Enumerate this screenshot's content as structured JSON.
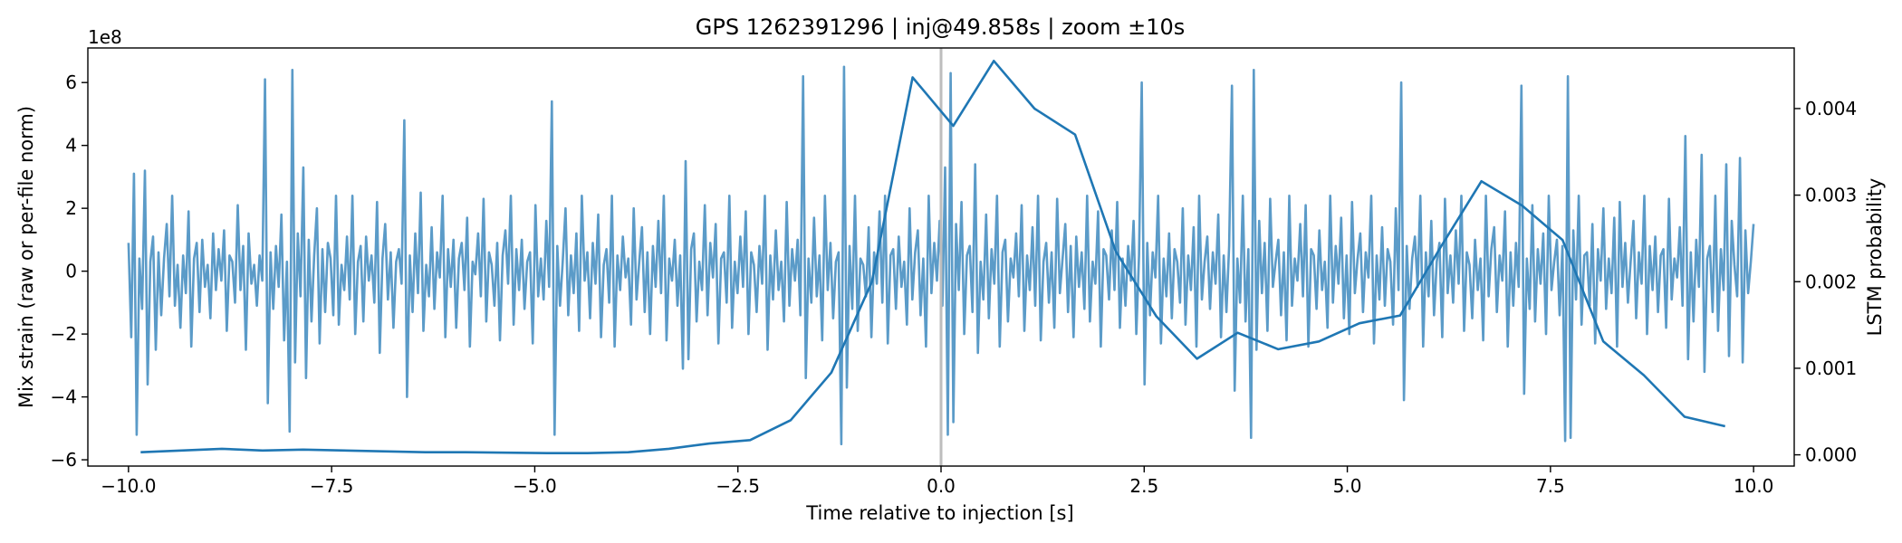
{
  "chart_data": {
    "type": "line",
    "title": "GPS 1262391296 | inj@49.858s | zoom ±10s",
    "xlabel": "Time relative to injection [s]",
    "ylabel_left": "Mix strain (raw or per-file norm)",
    "ylabel_right": "LSTM probability",
    "left_axis_offset_label": "1e8",
    "xlim": [
      -10.5,
      10.5
    ],
    "ylim_left": [
      -6.2,
      7.1
    ],
    "ylim_right": [
      -0.00013,
      0.0047
    ],
    "x_ticks": [
      -10.0,
      -7.5,
      -5.0,
      -2.5,
      0.0,
      2.5,
      5.0,
      7.5,
      10.0
    ],
    "x_tick_labels": [
      "−10.0",
      "−7.5",
      "−5.0",
      "−2.5",
      "0.0",
      "2.5",
      "5.0",
      "7.5",
      "10.0"
    ],
    "y_left_ticks": [
      -6,
      -4,
      -2,
      0,
      2,
      4,
      6
    ],
    "y_left_tick_labels": [
      "−6",
      "−4",
      "−2",
      "0",
      "2",
      "4",
      "6"
    ],
    "y_right_ticks": [
      0.0,
      0.001,
      0.002,
      0.003,
      0.004
    ],
    "y_right_tick_labels": [
      "0.000",
      "0.001",
      "0.002",
      "0.003",
      "0.004"
    ],
    "vertical_marker_x": 0.0,
    "grid": false,
    "series": [
      {
        "axis": "left",
        "color": "#5b9bc8",
        "x_range": [
          -10.0,
          10.0
        ],
        "n_points": 560,
        "values": [
          0.9,
          -2.1,
          3.1,
          -5.2,
          0.4,
          -1.2,
          3.2,
          -3.6,
          0.3,
          1.1,
          -2.5,
          0.6,
          -1.4,
          0.4,
          1.5,
          -0.8,
          2.4,
          -1.1,
          0.2,
          -1.8,
          0.5,
          -0.7,
          1.9,
          -2.4,
          0.4,
          0.9,
          -1.3,
          1.0,
          -0.5,
          0.2,
          -1.5,
          1.2,
          -0.6,
          0.7,
          -0.3,
          1.3,
          -1.9,
          0.5,
          0.3,
          -1.0,
          2.1,
          -0.6,
          0.8,
          -2.5,
          1.2,
          -0.4,
          0.2,
          -1.1,
          0.5,
          -0.3,
          6.1,
          -4.2,
          0.6,
          -1.2,
          0.8,
          -0.5,
          1.8,
          -2.2,
          0.3,
          -5.1,
          6.4,
          -2.9,
          1.2,
          -0.8,
          3.3,
          -3.4,
          1.0,
          -1.6,
          0.5,
          2.0,
          -2.3,
          0.7,
          -1.3,
          0.9,
          0.4,
          -1.4,
          2.4,
          -1.7,
          0.2,
          -0.6,
          1.1,
          -0.9,
          2.4,
          -2.0,
          0.3,
          0.8,
          -1.6,
          1.1,
          -0.3,
          0.5,
          -1.0,
          2.2,
          -2.6,
          0.4,
          1.5,
          -0.9,
          0.6,
          -1.8,
          0.3,
          0.7,
          -0.4,
          4.8,
          -4.0,
          0.5,
          -1.3,
          1.2,
          -0.7,
          2.5,
          -1.9,
          0.2,
          -0.8,
          1.4,
          -1.2,
          0.6,
          -0.2,
          2.4,
          -2.1,
          0.7,
          -0.5,
          1.0,
          -1.8,
          0.4,
          0.9,
          -0.6,
          1.7,
          -2.4,
          0.3,
          -0.1,
          1.2,
          -0.8,
          2.3,
          -1.6,
          0.6,
          0.2,
          -1.1,
          0.9,
          -2.2,
          0.5,
          1.3,
          -0.4,
          2.4,
          -1.7,
          0.7,
          -0.6,
          1.0,
          -1.2,
          0.3,
          0.6,
          -2.3,
          2.1,
          -0.8,
          0.4,
          -0.9,
          1.6,
          -0.5,
          5.4,
          -5.2,
          0.8,
          -1.1,
          0.3,
          2.0,
          -1.4,
          0.5,
          -0.7,
          1.2,
          -1.9,
          2.4,
          -0.3,
          0.6,
          -1.5,
          0.9,
          -0.4,
          1.8,
          -2.1,
          0.2,
          0.7,
          -1.0,
          2.4,
          -2.4,
          0.5,
          -0.6,
          1.1,
          -0.2,
          0.4,
          -1.7,
          2.0,
          -0.9,
          0.3,
          1.4,
          -1.3,
          0.6,
          -2.0,
          0.8,
          -0.5,
          1.6,
          -0.7,
          2.4,
          -2.2,
          0.4,
          -0.3,
          1.0,
          -1.1,
          0.5,
          -3.1,
          3.5,
          -2.8,
          0.7,
          1.2,
          -1.6,
          0.3,
          -0.6,
          2.1,
          -1.4,
          0.9,
          -0.2,
          1.5,
          -2.3,
          0.4,
          0.6,
          -1.0,
          2.4,
          -1.8,
          0.3,
          -0.7,
          1.1,
          -0.5,
          1.9,
          -2.0,
          0.6,
          0.2,
          -1.3,
          0.8,
          -0.4,
          2.4,
          -2.5,
          0.5,
          -0.9,
          1.3,
          -0.6,
          0.3,
          -1.6,
          2.2,
          -1.1,
          0.7,
          -0.3,
          1.0,
          -1.4,
          6.2,
          -3.4,
          0.4,
          -1.0,
          1.7,
          -0.8,
          0.5,
          -2.2,
          2.4,
          -0.6,
          0.9,
          -1.5,
          0.3,
          0.6,
          -5.5,
          6.5,
          -3.7,
          0.8,
          -1.2,
          2.4,
          -1.9,
          0.4,
          0.2,
          -0.8,
          1.4,
          -2.1,
          0.6,
          -0.4,
          1.9,
          -1.0,
          2.4,
          -2.3,
          0.5,
          0.7,
          -1.2,
          1.1,
          -0.5,
          0.3,
          -1.7,
          2.0,
          -0.9,
          0.6,
          1.3,
          -1.4,
          0.4,
          -2.4,
          2.4,
          -0.7,
          0.9,
          -0.3,
          1.6,
          -1.1,
          3.3,
          -5.2,
          6.3,
          -4.8,
          1.5,
          -0.6,
          2.2,
          -2.0,
          0.5,
          0.8,
          -1.3,
          3.4,
          -2.6,
          0.3,
          -0.9,
          1.8,
          -1.5,
          0.7,
          -0.4,
          2.4,
          -2.4,
          0.6,
          1.0,
          -1.6,
          0.4,
          -0.2,
          1.2,
          -0.8,
          2.1,
          -1.9,
          0.5,
          -0.6,
          1.4,
          -1.1,
          2.4,
          -2.2,
          0.3,
          0.9,
          -1.0,
          0.6,
          -1.8,
          2.3,
          -0.7,
          0.4,
          1.5,
          -1.3,
          0.8,
          -2.1,
          1.1,
          -0.5,
          0.6,
          -1.2,
          2.4,
          -1.6,
          0.3,
          -0.4,
          1.9,
          -2.4,
          0.7,
          0.5,
          -0.9,
          1.3,
          -0.6,
          2.2,
          -1.8,
          0.4,
          -1.1,
          0.8,
          -0.3,
          1.6,
          -2.0,
          0.5,
          6.0,
          -3.6,
          0.9,
          -1.4,
          0.6,
          -0.2,
          2.4,
          -2.3,
          0.4,
          -0.8,
          1.2,
          -1.5,
          0.7,
          0.3,
          -1.0,
          2.0,
          -1.7,
          0.5,
          -0.6,
          1.4,
          -2.4,
          2.4,
          -0.9,
          0.3,
          1.1,
          -1.2,
          0.6,
          -0.4,
          1.8,
          -2.1,
          0.5,
          -1.3,
          0.8,
          5.9,
          -3.8,
          0.4,
          -1.0,
          2.4,
          -1.6,
          0.7,
          -5.3,
          6.4,
          -2.5,
          1.6,
          -0.7,
          0.9,
          -1.9,
          2.3,
          -0.5,
          0.3,
          1.0,
          -1.4,
          0.6,
          -2.2,
          2.4,
          -1.1,
          0.4,
          -0.3,
          1.5,
          -0.8,
          2.1,
          -2.4,
          0.7,
          0.5,
          -1.2,
          1.3,
          -0.6,
          0.3,
          -1.8,
          2.4,
          -1.0,
          0.8,
          -0.4,
          1.7,
          -1.5,
          0.5,
          -2.0,
          2.2,
          -0.7,
          0.4,
          1.2,
          -1.3,
          0.6,
          -0.2,
          2.4,
          -2.3,
          0.5,
          -0.9,
          1.4,
          -1.1,
          0.7,
          0.3,
          -1.7,
          2.0,
          -0.6,
          6.0,
          -4.1,
          0.8,
          -1.2,
          0.4,
          1.1,
          -0.5,
          2.4,
          -2.4,
          0.6,
          -0.8,
          1.6,
          -1.4,
          0.3,
          0.9,
          -2.1,
          2.3,
          -0.7,
          0.5,
          -1.0,
          1.3,
          -0.4,
          2.4,
          -1.9,
          0.6,
          0.2,
          -1.5,
          1.0,
          -0.6,
          0.4,
          -2.2,
          2.4,
          -0.8,
          0.7,
          1.4,
          -1.3,
          0.5,
          -0.3,
          1.9,
          -2.4,
          0.6,
          -1.1,
          0.9,
          -0.5,
          5.9,
          -3.9,
          0.4,
          -1.2,
          2.1,
          -1.6,
          0.7,
          -0.4,
          1.2,
          -2.0,
          2.4,
          -0.6,
          0.3,
          1.0,
          -1.4,
          0.8,
          -5.4,
          6.2,
          -5.3,
          1.3,
          -0.9,
          2.4,
          -1.7,
          0.5,
          0.6,
          -1.1,
          1.5,
          -2.3,
          0.7,
          -0.3,
          2.0,
          -1.2,
          0.4,
          -0.7,
          1.7,
          -2.4,
          2.2,
          -0.5,
          0.9,
          -1.0,
          0.3,
          1.6,
          -1.5,
          0.6,
          -0.4,
          2.4,
          -2.0,
          0.8,
          -0.6,
          1.1,
          -1.3,
          0.5,
          0.7,
          -1.8,
          2.3,
          -0.9,
          0.4,
          -0.2,
          1.4,
          -1.1,
          4.3,
          -2.8,
          0.6,
          -1.6,
          1.0,
          -0.5,
          3.7,
          -3.2,
          0.4,
          0.8,
          -1.3,
          2.4,
          -1.9,
          0.7,
          -0.6,
          3.4,
          -2.7,
          1.6,
          0.2,
          -0.8,
          3.6,
          -2.9,
          1.3,
          -0.7,
          0.3,
          1.5
        ]
      },
      {
        "axis": "right",
        "color": "#1f77b4",
        "x": [
          -9.85,
          -8.85,
          -8.35,
          -7.85,
          -6.35,
          -5.85,
          -4.85,
          -4.35,
          -3.85,
          -3.35,
          -2.85,
          -2.35,
          -1.85,
          -1.35,
          -0.85,
          -0.35,
          0.15,
          0.65,
          1.15,
          1.65,
          2.15,
          2.65,
          3.15,
          3.65,
          4.15,
          4.65,
          5.15,
          5.65,
          6.15,
          6.65,
          7.15,
          7.65,
          8.15,
          8.65,
          9.15,
          9.65
        ],
        "y": [
          3e-05,
          7e-05,
          5e-05,
          6e-05,
          3e-05,
          3e-05,
          2e-05,
          2e-05,
          3e-05,
          7e-05,
          0.00013,
          0.00017,
          0.0004,
          0.00095,
          0.002,
          0.00436,
          0.0038,
          0.00455,
          0.004,
          0.0037,
          0.00235,
          0.0016,
          0.00111,
          0.00141,
          0.00122,
          0.00131,
          0.00152,
          0.00161,
          0.0024,
          0.00316,
          0.00288,
          0.00248,
          0.00131,
          0.00092,
          0.00044,
          0.00033
        ]
      }
    ]
  }
}
